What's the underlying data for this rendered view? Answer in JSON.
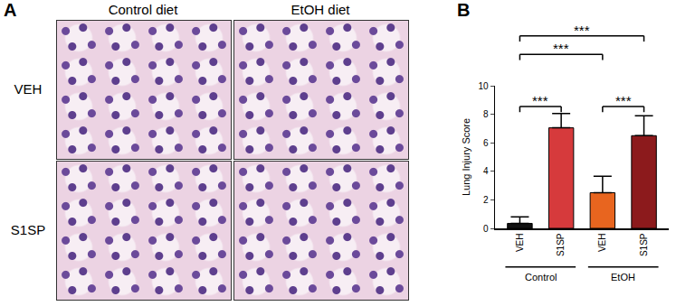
{
  "figure": {
    "panel_a": {
      "label": "A",
      "columns": [
        "Control diet",
        "EtOH diet"
      ],
      "rows": [
        "VEH",
        "S1SP"
      ]
    },
    "panel_b": {
      "label": "B"
    }
  },
  "chart_data": {
    "type": "bar",
    "y_label": "Lung Injury Score",
    "categories": [
      "VEH",
      "S1SP",
      "VEH",
      "S1SP"
    ],
    "groups": [
      "Control",
      "Control",
      "EtOH",
      "EtOH"
    ],
    "values": [
      0.35,
      7.05,
      2.5,
      6.5
    ],
    "errors": [
      0.45,
      1.0,
      1.15,
      1.4
    ],
    "colors": [
      "#111111",
      "#d63a3c",
      "#e8651f",
      "#8c1a1c"
    ],
    "ylim": [
      0,
      10
    ],
    "yticks": [
      0,
      2,
      4,
      6,
      8,
      10
    ],
    "grid": false,
    "comparisons": [
      {
        "from": 0,
        "to": 1,
        "label": "***"
      },
      {
        "from": 2,
        "to": 3,
        "label": "***"
      },
      {
        "from": 0,
        "to": 2,
        "label": "***"
      },
      {
        "from": 0,
        "to": 3,
        "label": "***"
      }
    ]
  }
}
